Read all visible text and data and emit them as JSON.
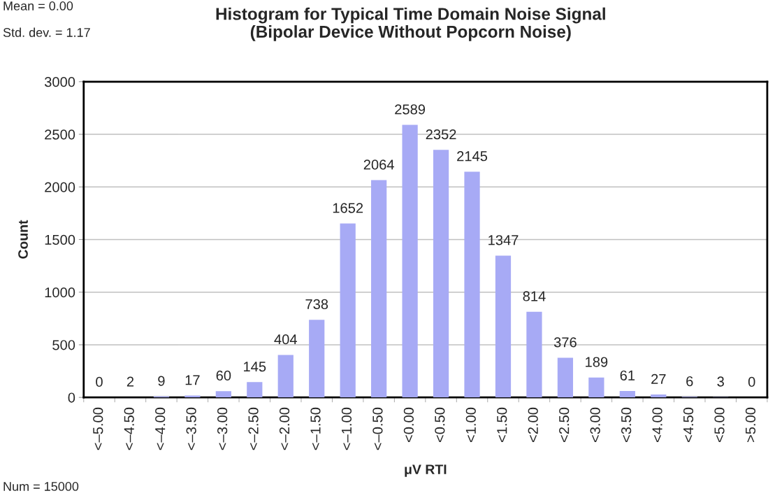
{
  "chart_data": {
    "type": "bar",
    "title": "Histogram for Typical Time Domain Noise Signal\n(Bipolar Device Without Popcorn Noise)",
    "xlabel": "μV RTI",
    "ylabel": "Count",
    "annotations": [
      "Mean = 0.00",
      "Std. dev. = 1.17",
      "Num = 15000"
    ],
    "categories": [
      "<–5.00",
      "<–4.50",
      "<–4.00",
      "<–3.50",
      "<–3.00",
      "<–2.50",
      "<–2.00",
      "<–1.50",
      "<–1.00",
      "<–0.50",
      "<0.00",
      "<0.50",
      "<1.00",
      "<1.50",
      "<2.00",
      "<2.50",
      "<3.00",
      "<3.50",
      "<4.00",
      "<4.50",
      "<5.00",
      ">5.00"
    ],
    "values": [
      0,
      2,
      9,
      17,
      60,
      145,
      404,
      738,
      1652,
      2064,
      2589,
      2352,
      2145,
      1347,
      814,
      376,
      189,
      61,
      27,
      6,
      3,
      0
    ],
    "color": "#a7aaf5",
    "ylim": [
      0,
      3000
    ],
    "yticks": [
      0,
      500,
      1000,
      1500,
      2000,
      2500,
      3000
    ],
    "grid": "y",
    "data_labels": true
  }
}
